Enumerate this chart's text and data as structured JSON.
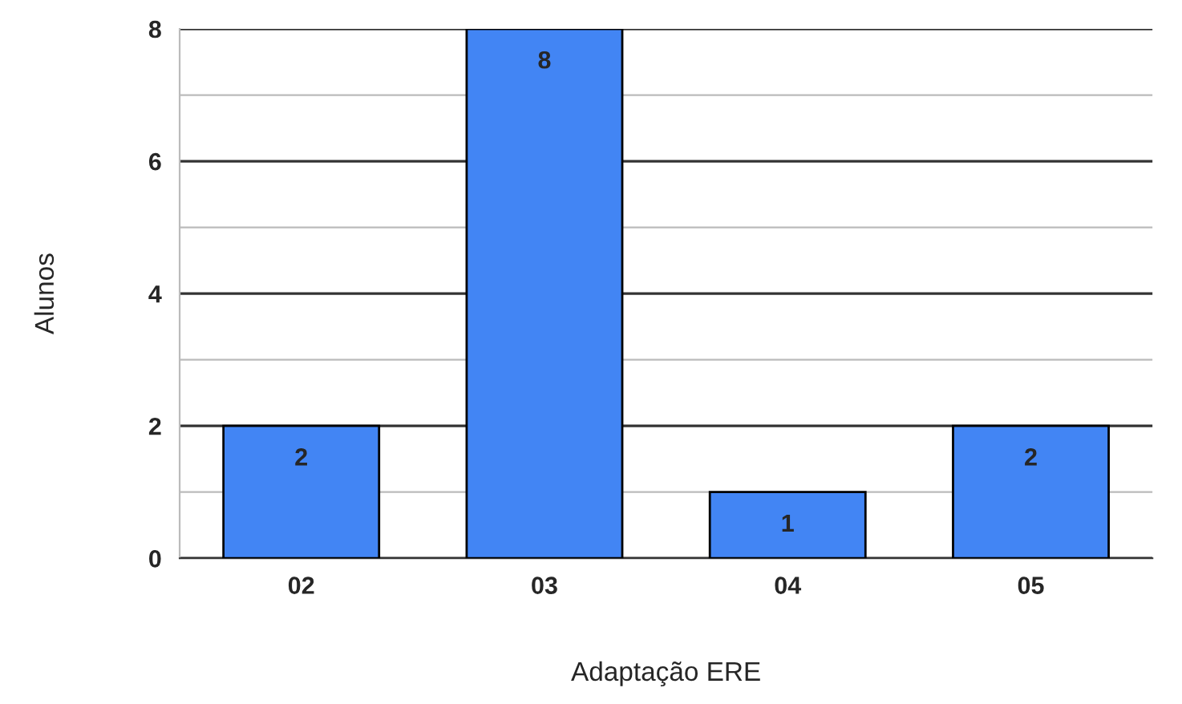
{
  "chart_data": {
    "type": "bar",
    "xlabel": "Adaptação ERE",
    "ylabel": "Alunos",
    "categories": [
      "02",
      "03",
      "04",
      "05"
    ],
    "values": [
      2,
      8,
      1,
      2
    ],
    "color": "#4285f4",
    "ylim": [
      0,
      8
    ],
    "yticks": [
      0,
      {
        "value": 1,
        "label": null
      },
      2,
      {
        "value": 3,
        "label": null
      },
      4,
      {
        "value": 5,
        "label": null
      },
      6,
      {
        "value": 7,
        "label": null
      },
      8
    ],
    "grid": "y",
    "data_labels": true,
    "legend": false
  }
}
